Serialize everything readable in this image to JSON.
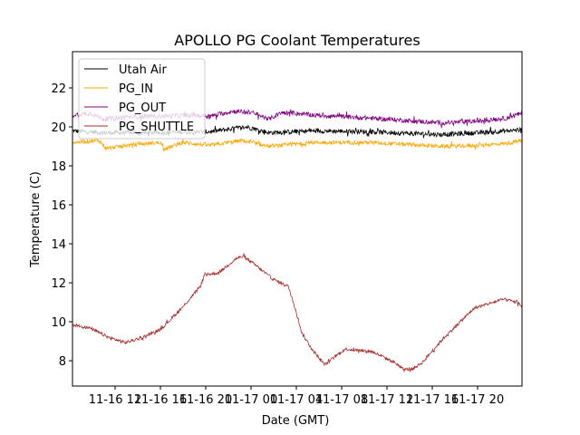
{
  "chart_data": {
    "type": "line",
    "title": "APOLLO PG Coolant Temperatures",
    "xlabel": "Date (GMT)",
    "ylabel": "Temperature (C)",
    "x_units": "hours since 11-16 00:00 GMT",
    "xlim": [
      8.24,
      47.92
    ],
    "ylim": [
      6.7,
      23.86
    ],
    "grid": false,
    "legend_position": "top-left",
    "x_ticks": [
      {
        "value": 12,
        "label": "11-16 12"
      },
      {
        "value": 16,
        "label": "11-16 16"
      },
      {
        "value": 20,
        "label": "11-16 20"
      },
      {
        "value": 24,
        "label": "11-17 00"
      },
      {
        "value": 28,
        "label": "11-17 04"
      },
      {
        "value": 32,
        "label": "11-17 08"
      },
      {
        "value": 36,
        "label": "11-17 12"
      },
      {
        "value": 40,
        "label": "11-17 16"
      },
      {
        "value": 44,
        "label": "11-17 20"
      }
    ],
    "y_ticks": [
      {
        "value": 8,
        "label": "8"
      },
      {
        "value": 10,
        "label": "10"
      },
      {
        "value": 12,
        "label": "12"
      },
      {
        "value": 14,
        "label": "14"
      },
      {
        "value": 16,
        "label": "16"
      },
      {
        "value": 18,
        "label": "18"
      },
      {
        "value": 20,
        "label": "20"
      },
      {
        "value": 22,
        "label": "22"
      }
    ],
    "series": [
      {
        "name": "Utah Air",
        "color": "#000000",
        "noise": 0.12,
        "x": [
          8.24,
          11.0,
          16.2,
          18.6,
          20.4,
          23.6,
          25.6,
          29.7,
          34.5,
          40.9,
          44.1,
          47.92
        ],
        "y": [
          19.8,
          19.7,
          19.7,
          19.75,
          19.75,
          20.0,
          19.7,
          19.8,
          19.75,
          19.6,
          19.7,
          19.85
        ]
      },
      {
        "name": "PG_IN",
        "color": "#ffa500",
        "noise": 0.1,
        "x": [
          8.24,
          10.6,
          11.2,
          13.0,
          16.0,
          16.3,
          18.0,
          20.4,
          23.2,
          25.6,
          29.7,
          34.5,
          40.9,
          44.1,
          46.5,
          47.92
        ],
        "y": [
          19.2,
          19.3,
          18.9,
          19.05,
          19.2,
          18.85,
          19.2,
          19.05,
          19.3,
          19.0,
          19.2,
          19.2,
          19.0,
          19.05,
          19.15,
          19.3
        ]
      },
      {
        "name": "PG_OUT",
        "color": "#800080",
        "noise": 0.12,
        "x": [
          8.24,
          9.8,
          11.0,
          13.0,
          16.2,
          18.6,
          20.4,
          22.4,
          24.0,
          25.6,
          26.8,
          29.7,
          34.5,
          40.9,
          44.1,
          46.5,
          47.92
        ],
        "y": [
          20.6,
          20.7,
          20.4,
          20.5,
          20.55,
          20.6,
          20.55,
          20.8,
          20.75,
          20.4,
          20.75,
          20.6,
          20.45,
          20.2,
          20.3,
          20.45,
          20.7
        ]
      },
      {
        "name": "PG_SHUTTLE",
        "color": "#a52a2a",
        "noise": 0.08,
        "x": [
          8.24,
          9.8,
          11.4,
          12.9,
          14.3,
          15.9,
          16.3,
          17.9,
          19.5,
          19.9,
          21.1,
          22.7,
          23.3,
          24.3,
          25.9,
          27.3,
          27.9,
          28.5,
          29.5,
          30.5,
          32.3,
          34.7,
          36.7,
          37.5,
          38.3,
          39.1,
          41.0,
          43.7,
          46.3,
          47.5,
          47.92
        ],
        "y": [
          9.85,
          9.67,
          9.2,
          8.93,
          9.16,
          9.58,
          9.77,
          10.7,
          11.8,
          12.4,
          12.5,
          13.25,
          13.35,
          12.95,
          12.2,
          11.8,
          10.7,
          9.4,
          8.5,
          7.8,
          8.6,
          8.47,
          7.9,
          7.53,
          7.6,
          7.9,
          9.16,
          10.7,
          11.16,
          11.0,
          10.8
        ]
      }
    ]
  }
}
